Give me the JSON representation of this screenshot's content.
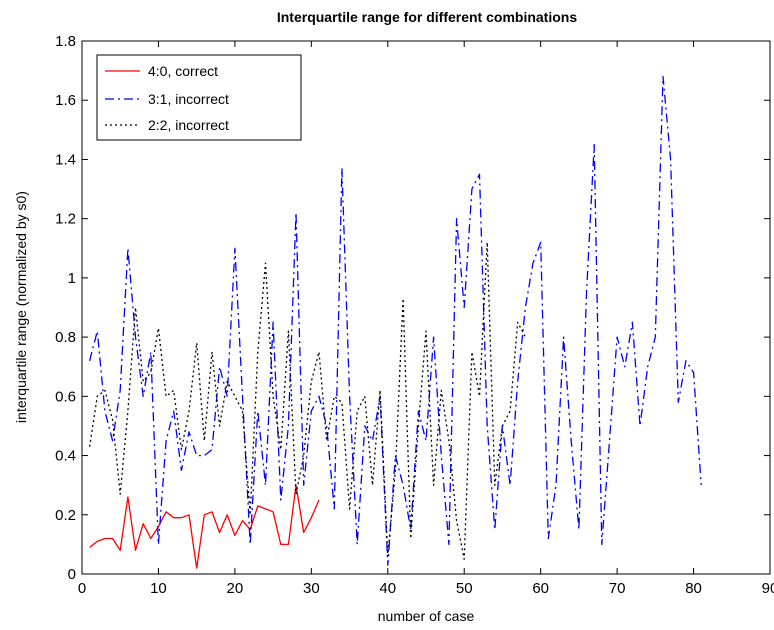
{
  "chart_data": {
    "type": "line",
    "title": "Interquartile range for different combinations",
    "xlabel": "number of case",
    "ylabel": "interquartile range (normalized by s0)",
    "xlim": [
      0,
      90
    ],
    "ylim": [
      0,
      1.8
    ],
    "xticks": [
      0,
      10,
      20,
      30,
      40,
      50,
      60,
      70,
      80,
      90
    ],
    "yticks": [
      0,
      0.2,
      0.4,
      0.6,
      0.8,
      1,
      1.2,
      1.4,
      1.6,
      1.8
    ],
    "grid": false,
    "legend_position": "top-left",
    "series": [
      {
        "name": "4:0, correct",
        "color": "#ff0000",
        "line_style": "solid",
        "x": [
          1,
          2,
          3,
          4,
          5,
          6,
          7,
          8,
          9,
          10,
          11,
          12,
          13,
          14,
          15,
          16,
          17,
          18,
          19,
          20,
          21,
          22,
          23,
          24,
          25,
          26,
          27,
          28,
          29,
          30,
          31
        ],
        "y": [
          0.09,
          0.11,
          0.12,
          0.12,
          0.08,
          0.26,
          0.08,
          0.17,
          0.12,
          0.16,
          0.21,
          0.19,
          0.19,
          0.2,
          0.02,
          0.2,
          0.21,
          0.14,
          0.2,
          0.13,
          0.18,
          0.15,
          0.23,
          0.22,
          0.21,
          0.1,
          0.1,
          0.3,
          0.14,
          0.19,
          0.25
        ]
      },
      {
        "name": "3:1, incorrect",
        "color": "#0000ff",
        "line_style": "dashdot",
        "x": [
          1,
          2,
          3,
          4,
          5,
          6,
          7,
          8,
          9,
          10,
          11,
          12,
          13,
          14,
          15,
          16,
          17,
          18,
          19,
          20,
          21,
          22,
          23,
          24,
          25,
          26,
          27,
          28,
          29,
          30,
          31,
          32,
          33,
          34,
          35,
          36,
          37,
          38,
          39,
          40,
          41,
          42,
          43,
          44,
          45,
          46,
          47,
          48,
          49,
          50,
          51,
          52,
          53,
          54,
          55,
          56,
          57,
          58,
          59,
          60,
          61,
          62,
          63,
          64,
          65,
          66,
          67,
          68,
          69,
          70,
          71,
          72,
          73,
          74,
          75,
          76,
          77,
          78,
          79,
          80,
          81
        ],
        "y": [
          0.72,
          0.82,
          0.55,
          0.45,
          0.62,
          1.1,
          0.8,
          0.6,
          0.75,
          0.1,
          0.45,
          0.55,
          0.35,
          0.48,
          0.4,
          0.4,
          0.42,
          0.7,
          0.6,
          1.1,
          0.6,
          0.1,
          0.55,
          0.3,
          0.85,
          0.25,
          0.5,
          1.22,
          0.3,
          0.55,
          0.6,
          0.5,
          0.22,
          1.37,
          0.6,
          0.1,
          0.5,
          0.45,
          0.6,
          0.03,
          0.4,
          0.3,
          0.15,
          0.55,
          0.45,
          0.8,
          0.4,
          0.1,
          1.2,
          0.9,
          1.3,
          1.35,
          0.5,
          0.15,
          0.5,
          0.3,
          0.65,
          0.9,
          1.05,
          1.12,
          0.12,
          0.3,
          0.8,
          0.45,
          0.15,
          0.95,
          1.45,
          0.1,
          0.45,
          0.8,
          0.7,
          0.85,
          0.5,
          0.7,
          0.8,
          1.68,
          1.4,
          0.58,
          0.72,
          0.68,
          0.3
        ]
      },
      {
        "name": "2:2, incorrect",
        "color": "#000000",
        "line_style": "dotted",
        "x": [
          1,
          2,
          3,
          4,
          5,
          6,
          7,
          8,
          9,
          10,
          11,
          12,
          13,
          14,
          15,
          16,
          17,
          18,
          19,
          20,
          21,
          22,
          23,
          24,
          25,
          26,
          27,
          28,
          29,
          30,
          31,
          32,
          33,
          34,
          35,
          36,
          37,
          38,
          39,
          40,
          41,
          42,
          43,
          44,
          45,
          46,
          47,
          48,
          49,
          50,
          51,
          52,
          53,
          54,
          55,
          56,
          57,
          58
        ],
        "y": [
          0.43,
          0.6,
          0.62,
          0.52,
          0.27,
          0.55,
          0.9,
          0.65,
          0.68,
          0.83,
          0.6,
          0.62,
          0.42,
          0.55,
          0.78,
          0.45,
          0.75,
          0.5,
          0.65,
          0.6,
          0.55,
          0.2,
          0.75,
          1.05,
          0.6,
          0.42,
          0.82,
          0.27,
          0.4,
          0.65,
          0.75,
          0.45,
          0.6,
          0.58,
          0.22,
          0.55,
          0.6,
          0.3,
          0.62,
          0.06,
          0.35,
          0.93,
          0.12,
          0.5,
          0.82,
          0.3,
          0.62,
          0.45,
          0.18,
          0.05,
          0.75,
          0.6,
          1.12,
          0.3,
          0.5,
          0.55,
          0.85,
          0.8
        ]
      }
    ]
  }
}
